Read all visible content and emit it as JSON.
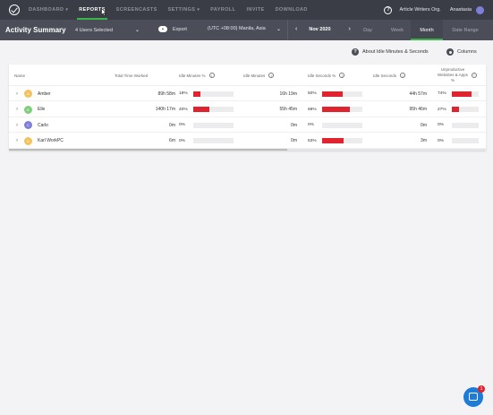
{
  "nav": {
    "items": [
      {
        "label": "DASHBOARD",
        "caret": true
      },
      {
        "label": "REPORTS",
        "caret": false
      },
      {
        "label": "SCREENCASTS",
        "caret": false
      },
      {
        "label": "SETTINGS",
        "caret": true
      },
      {
        "label": "PAYROLL",
        "caret": false
      },
      {
        "label": "INVITE",
        "caret": false
      },
      {
        "label": "DOWNLOAD",
        "caret": false
      }
    ],
    "help": "?",
    "org": "Article Writers Org.",
    "user": "Anastasia"
  },
  "subbar": {
    "title": "Activity Summary",
    "users_selected": "4 Users Selected",
    "export": "Export",
    "timezone": "(UTC +08:00) Manila, Asia",
    "date": "Nov 2020",
    "tabs": [
      "Day",
      "Week",
      "Month",
      "Date Range"
    ],
    "active_tab": "Month"
  },
  "toolbar": {
    "about": "About Idle Minutes & Seconds",
    "columns": "Columns"
  },
  "table": {
    "headers": {
      "name": "Name",
      "total_time": "Total Time Worked",
      "idle_min_pct": "Idle Minutes %",
      "idle_min": "Idle Minutes",
      "idle_sec_pct": "Idle Seconds %",
      "idle_sec": "Idle Seconds",
      "unproductive_1": "Unproductive",
      "unproductive_2": "Websites & Apps",
      "unproductive_3": "%"
    },
    "rows": [
      {
        "name": "Amber",
        "initial": "A",
        "avatar_color": "#f5c15c",
        "total": "89h 58m",
        "idle_min_pct": "18%",
        "idle_min_frac": 0.18,
        "idle_min": "16h 19m",
        "idle_sec_pct": "50%",
        "idle_sec_frac": 0.5,
        "idle_sec": "44h 57m",
        "unprod_pct": "74%",
        "unprod_frac": 0.74
      },
      {
        "name": "Elle",
        "initial": "E",
        "avatar_color": "#7fcf7a",
        "total": "140h 17m",
        "idle_min_pct": "40%",
        "idle_min_frac": 0.4,
        "idle_min": "55h 45m",
        "idle_sec_pct": "68%",
        "idle_sec_frac": 0.68,
        "idle_sec": "95h 46m",
        "unprod_pct": "27%",
        "unprod_frac": 0.27
      },
      {
        "name": "Carlo",
        "initial": "C",
        "avatar_color": "#7d7fd9",
        "total": "0m",
        "idle_min_pct": "0%",
        "idle_min_frac": 0,
        "idle_min": "0m",
        "idle_sec_pct": "0%",
        "idle_sec_frac": 0,
        "idle_sec": "0m",
        "unprod_pct": "0%",
        "unprod_frac": 0
      },
      {
        "name": "Karl WorkPC",
        "initial": "K",
        "avatar_color": "#f5c15c",
        "total": "6m",
        "idle_min_pct": "0%",
        "idle_min_frac": 0,
        "idle_min": "0m",
        "idle_sec_pct": "53%",
        "idle_sec_frac": 0.53,
        "idle_sec": "3m",
        "unprod_pct": "0%",
        "unprod_frac": 0
      }
    ]
  },
  "chat": {
    "badge": "1"
  }
}
